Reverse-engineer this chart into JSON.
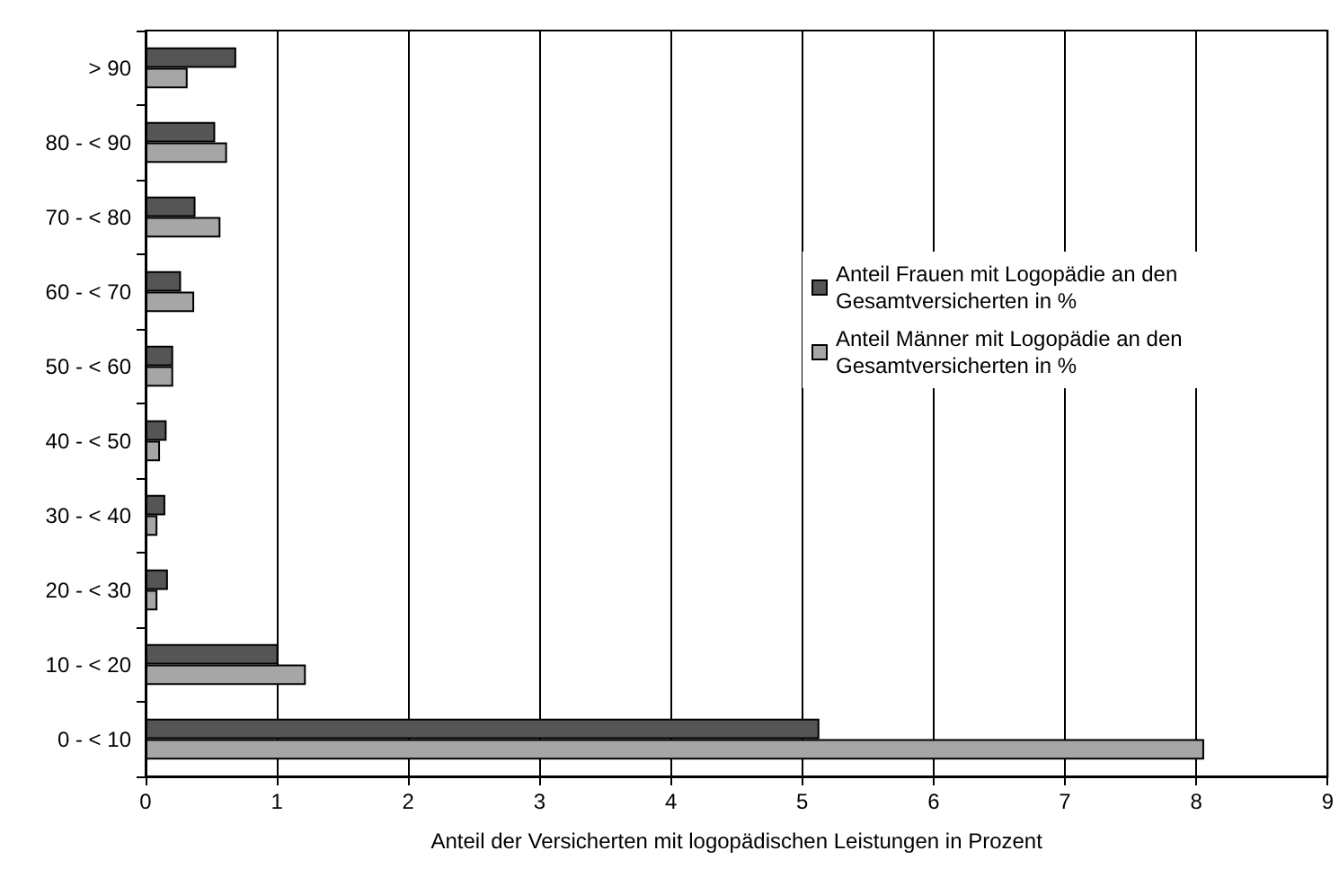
{
  "chart_data": {
    "type": "bar",
    "orientation": "horizontal",
    "xlabel": "Anteil der Versicherten mit logopädischen Leistungen in Prozent",
    "categories": [
      "> 90",
      "80 - < 90",
      "70 - < 80",
      "60 - < 70",
      "50 - < 60",
      "40 - < 50",
      "30 - < 40",
      "20 - < 30",
      "10 - < 20",
      "0 - < 10"
    ],
    "series": [
      {
        "name": "Anteil Frauen mit Logopädie an den Gesamtversicherten in %",
        "color": "#555555",
        "values": [
          0.69,
          0.53,
          0.38,
          0.27,
          0.21,
          0.16,
          0.15,
          0.17,
          1.01,
          5.13
        ]
      },
      {
        "name": "Anteil Männer mit Logopädie an den Gesamtversicherten in %",
        "color": "#a6a6a6",
        "values": [
          0.32,
          0.62,
          0.57,
          0.37,
          0.21,
          0.11,
          0.09,
          0.09,
          1.22,
          8.06
        ]
      }
    ],
    "xlim": [
      0,
      9
    ],
    "xticks": [
      0,
      1,
      2,
      3,
      4,
      5,
      6,
      7,
      8,
      9
    ],
    "grid": "x",
    "legend": "right"
  }
}
